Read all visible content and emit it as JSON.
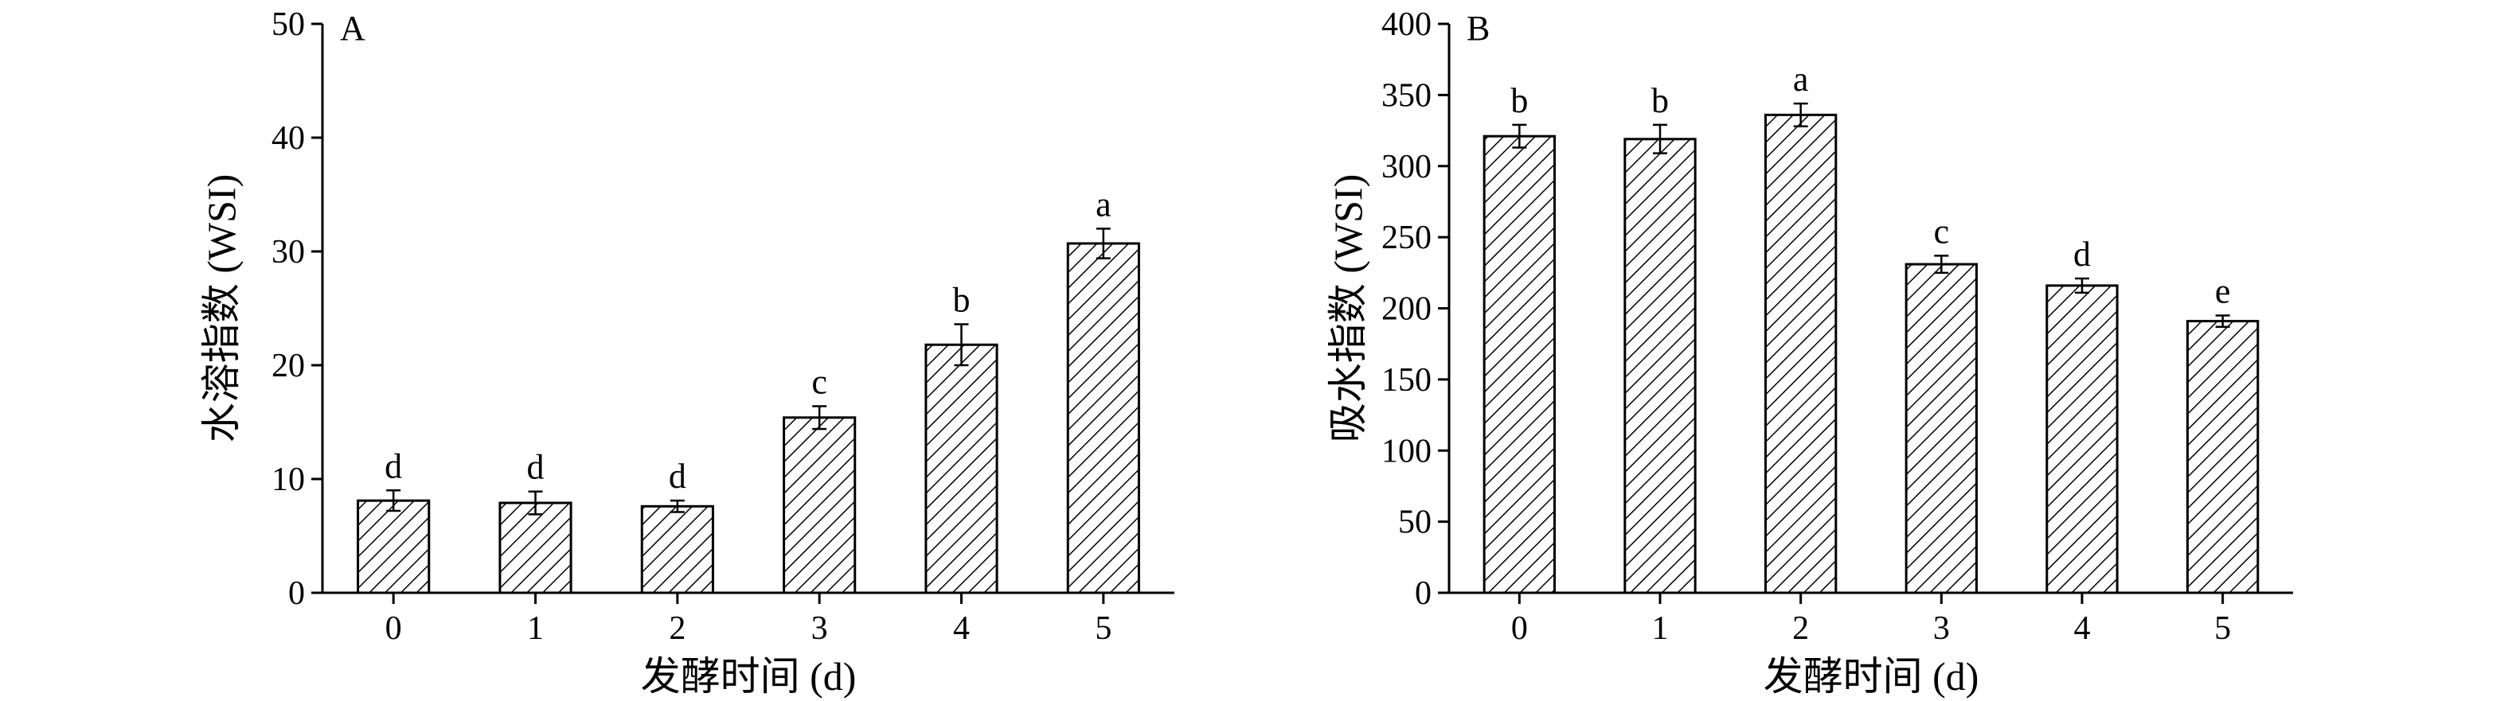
{
  "chart_data": [
    {
      "type": "bar",
      "panel_label": "A",
      "categories": [
        "0",
        "1",
        "2",
        "3",
        "4",
        "5"
      ],
      "values": [
        8.1,
        7.9,
        7.6,
        15.4,
        21.8,
        30.7
      ],
      "errors": [
        0.9,
        1.0,
        0.5,
        1.0,
        1.8,
        1.3
      ],
      "significance": [
        "d",
        "d",
        "d",
        "c",
        "b",
        "a"
      ],
      "xlabel": "发酵时间 (d)",
      "ylabel": "水溶指数 (WSI)",
      "ylim": [
        0,
        50
      ],
      "yticks": [
        0,
        10,
        20,
        30,
        40,
        50
      ],
      "grid": false,
      "bar_fill": "diagonal-hatch",
      "colors": {
        "bar_edge": "#000000",
        "hatch": "#000000",
        "background": "#ffffff"
      }
    },
    {
      "type": "bar",
      "panel_label": "B",
      "categories": [
        "0",
        "1",
        "2",
        "3",
        "4",
        "5"
      ],
      "values": [
        321,
        319,
        336,
        231,
        216,
        191
      ],
      "errors": [
        8,
        10,
        8,
        6,
        5,
        4
      ],
      "significance": [
        "b",
        "b",
        "a",
        "c",
        "d",
        "e"
      ],
      "xlabel": "发酵时间 (d)",
      "ylabel": "吸水指数 (WSI)",
      "ylim": [
        0,
        400
      ],
      "yticks": [
        0,
        50,
        100,
        150,
        200,
        250,
        300,
        350,
        400
      ],
      "grid": false,
      "bar_fill": "diagonal-hatch",
      "colors": {
        "bar_edge": "#000000",
        "hatch": "#000000",
        "background": "#ffffff"
      }
    }
  ]
}
